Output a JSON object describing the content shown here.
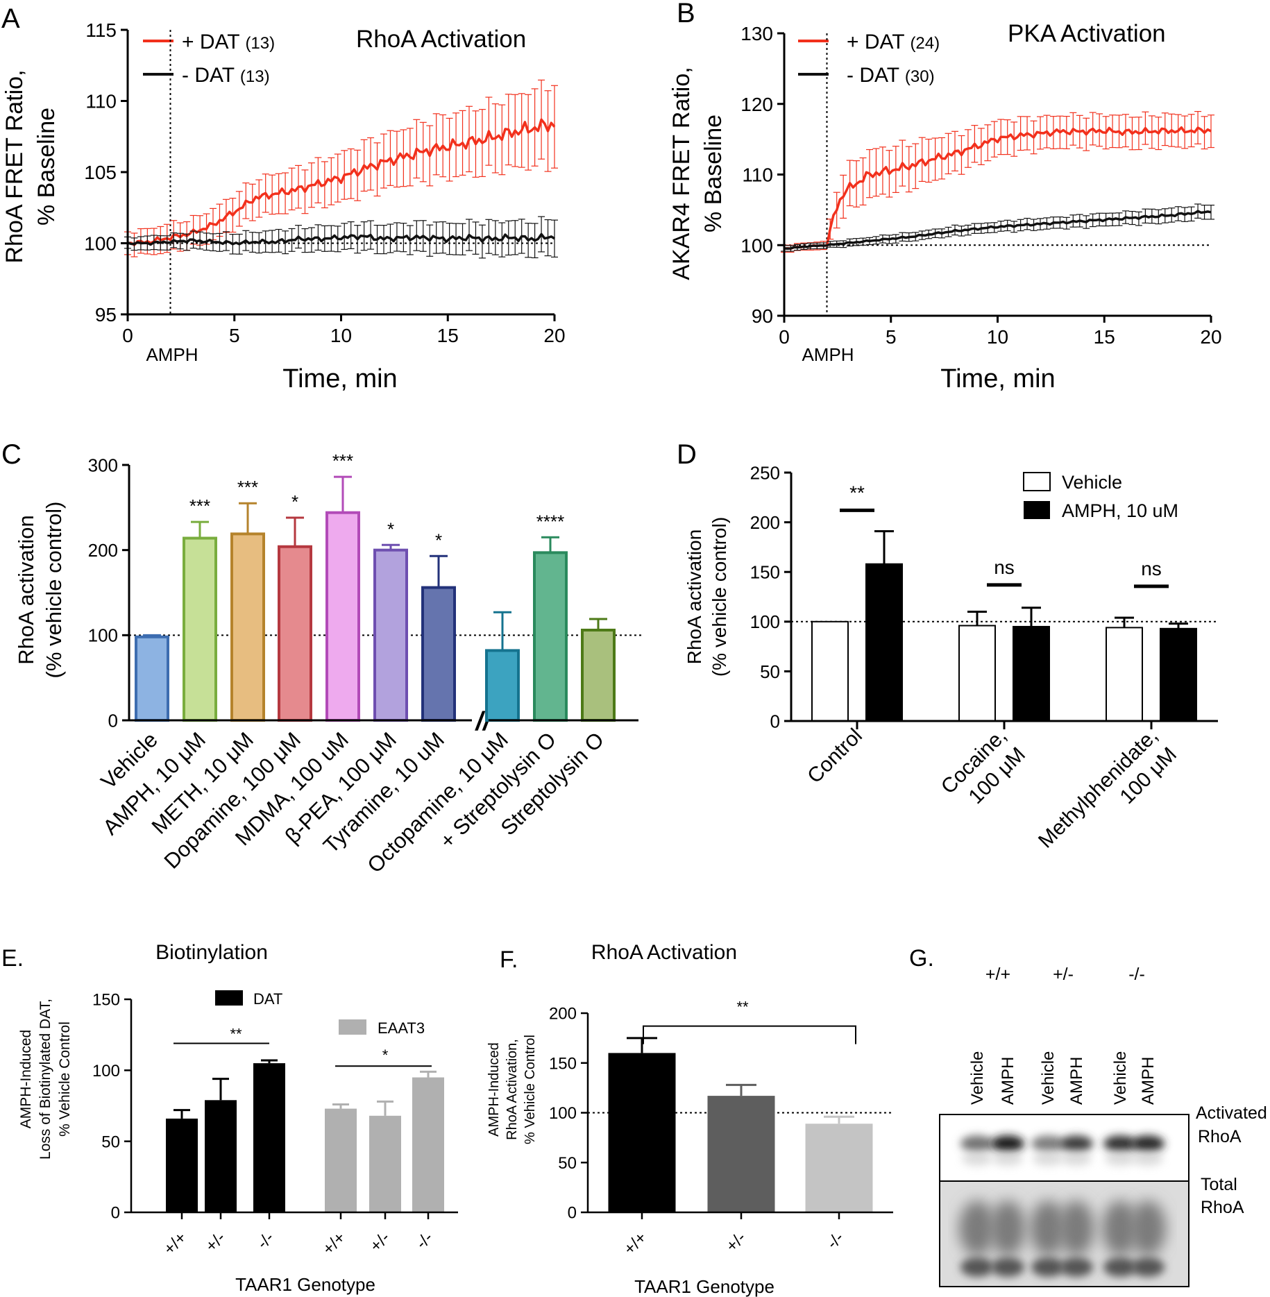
{
  "panelA": {
    "letter": "A",
    "title": "RhoA Activation",
    "ylabel_1": "RhoA FRET Ratio,",
    "ylabel_2": "% Baseline",
    "xlabel": "Time, min",
    "yticks": [
      95,
      100,
      105,
      110,
      115
    ],
    "xticks": [
      0,
      5,
      10,
      15,
      20
    ],
    "marker": "AMPH",
    "legend": [
      {
        "label": "+ DAT",
        "n": "(13)",
        "color": "#f2301c"
      },
      {
        "label": "- DAT",
        "n": "(13)",
        "color": "#111111"
      }
    ],
    "chart_data": {
      "type": "line",
      "xlim": [
        0,
        20
      ],
      "ylim": [
        95,
        115
      ],
      "event_x": 2,
      "baseline": 100,
      "series": [
        {
          "name": "+ DAT (13)",
          "color": "#f2301c",
          "x": [
            0,
            1,
            2,
            3,
            4,
            5,
            6,
            7,
            8,
            9,
            10,
            11,
            12,
            13,
            14,
            15,
            16,
            17,
            18,
            19,
            20
          ],
          "y": [
            100,
            100.1,
            100.4,
            100.7,
            101.3,
            102.2,
            103.2,
            103.5,
            103.8,
            104.2,
            104.6,
            105.2,
            105.7,
            106.1,
            106.5,
            106.8,
            107.1,
            107.4,
            107.8,
            108.1,
            108.4
          ],
          "err": [
            0.8,
            0.9,
            1.0,
            1.0,
            1.1,
            1.2,
            1.3,
            1.4,
            1.5,
            1.6,
            1.7,
            1.8,
            1.9,
            2.0,
            2.1,
            2.2,
            2.3,
            2.4,
            2.5,
            2.7,
            2.9
          ]
        },
        {
          "name": "- DAT (13)",
          "color": "#111111",
          "x": [
            0,
            1,
            2,
            3,
            4,
            5,
            6,
            7,
            8,
            9,
            10,
            11,
            12,
            13,
            14,
            15,
            16,
            17,
            18,
            19,
            20
          ],
          "y": [
            100,
            100,
            100.1,
            100.2,
            100.1,
            100,
            100.1,
            100.1,
            100.3,
            100.3,
            100.4,
            100.5,
            100.3,
            100.4,
            100.4,
            100.3,
            100.4,
            100.3,
            100.4,
            100.3,
            100.5
          ],
          "err": [
            0.4,
            0.5,
            0.5,
            0.6,
            0.6,
            0.7,
            0.7,
            0.8,
            0.8,
            0.9,
            0.9,
            1.0,
            1.0,
            1.0,
            1.1,
            1.1,
            1.1,
            1.2,
            1.2,
            1.2,
            1.3
          ]
        }
      ]
    }
  },
  "panelB": {
    "letter": "B",
    "title": "PKA Activation",
    "ylabel_1": "AKAR4 FRET Ratio,",
    "ylabel_2": "% Baseline",
    "xlabel": "Time, min",
    "yticks": [
      90,
      100,
      110,
      120,
      130
    ],
    "xticks": [
      0,
      5,
      10,
      15,
      20
    ],
    "marker": "AMPH",
    "legend": [
      {
        "label": "+ DAT",
        "n": "(24)",
        "color": "#f2301c"
      },
      {
        "label": "- DAT",
        "n": "(30)",
        "color": "#111111"
      }
    ],
    "chart_data": {
      "type": "line",
      "xlim": [
        0,
        20
      ],
      "ylim": [
        90,
        130
      ],
      "event_x": 2,
      "baseline": 100,
      "series": [
        {
          "name": "+ DAT (24)",
          "color": "#f2301c",
          "x": [
            0,
            1,
            2,
            2.3,
            2.7,
            3,
            4,
            5,
            6,
            7,
            8,
            9,
            10,
            11,
            12,
            13,
            14,
            15,
            16,
            17,
            18,
            19,
            20
          ],
          "y": [
            99.5,
            99.8,
            100,
            104,
            107,
            108,
            110,
            110.6,
            111.3,
            112.2,
            113,
            114,
            115.1,
            115.5,
            115.8,
            116.1,
            116.1,
            116.2,
            116,
            116.1,
            116.2,
            116.2,
            116.3
          ],
          "err": [
            0.5,
            0.5,
            0.6,
            2.2,
            3.0,
            3.2,
            3.4,
            3.3,
            3.2,
            3.0,
            2.8,
            2.6,
            2.5,
            2.4,
            2.3,
            2.3,
            2.3,
            2.3,
            2.3,
            2.3,
            2.3,
            2.3,
            2.3
          ]
        },
        {
          "name": "- DAT (30)",
          "color": "#111111",
          "x": [
            0,
            1,
            2,
            3,
            4,
            5,
            6,
            7,
            8,
            9,
            10,
            11,
            12,
            13,
            14,
            15,
            16,
            17,
            18,
            19,
            20
          ],
          "y": [
            99.5,
            99.8,
            100,
            100.3,
            100.6,
            100.9,
            101.2,
            101.6,
            102,
            102.3,
            102.6,
            102.8,
            103,
            103.2,
            103.4,
            103.6,
            103.8,
            104,
            104.2,
            104.5,
            104.8
          ],
          "err": [
            0.4,
            0.4,
            0.4,
            0.5,
            0.5,
            0.6,
            0.6,
            0.6,
            0.7,
            0.7,
            0.7,
            0.8,
            0.8,
            0.8,
            0.9,
            0.9,
            0.9,
            1.0,
            1.0,
            1.0,
            1.0
          ]
        }
      ]
    }
  },
  "panelC": {
    "letter": "C",
    "ylabel_1": "RhoA activation",
    "ylabel_2": "(% vehicle control)",
    "yticks": [
      0,
      100,
      200,
      300
    ],
    "break_mark": "//",
    "chart_data": {
      "type": "bar",
      "ylim": [
        0,
        300
      ],
      "baseline": 100,
      "categories": [
        "Vehicle",
        "AMPH, 10 μM",
        "METH, 10 μM",
        "Dopamine, 100 μM",
        "MDMA, 100 uM",
        "β-PEA, 100 μM",
        "Tyramine, 10 uM",
        "Octopamine, 10 μM",
        "+ Streptolysin O",
        "Streptolysin O"
      ],
      "values": [
        98,
        214,
        219,
        204,
        244,
        200,
        156,
        82,
        197,
        106
      ],
      "errors": [
        2,
        19,
        36,
        34,
        42,
        6,
        37,
        45,
        18,
        13
      ],
      "significance": [
        "",
        "***",
        "***",
        "*",
        "***",
        "*",
        "*",
        "",
        "****",
        ""
      ],
      "fills": [
        "#8db3e2",
        "#c6e097",
        "#e7bd80",
        "#e58a8e",
        "#eeaaee",
        "#b2a2dd",
        "#6574ae",
        "#3ca3c0",
        "#62b58f",
        "#a9c07d"
      ],
      "strokes": [
        "#3d6db0",
        "#79ad3e",
        "#b5832c",
        "#b5383f",
        "#b24bb8",
        "#6e4fb0",
        "#23327a",
        "#15738f",
        "#2a8a5d",
        "#4d7a17"
      ]
    }
  },
  "panelD": {
    "letter": "D",
    "ylabel_1": "RhoA activation",
    "ylabel_2": "(% vehicle control)",
    "yticks": [
      0,
      50,
      100,
      150,
      200,
      250
    ],
    "legend": [
      {
        "label": "Vehicle",
        "fill": "#ffffff"
      },
      {
        "label": "AMPH, 10 uM",
        "fill": "#000000"
      }
    ],
    "groups": [
      {
        "line1": "Control",
        "line2": ""
      },
      {
        "line1": "Cocaine,",
        "line2": "100 μM"
      },
      {
        "line1": "Methylphenidate,",
        "line2": "100 μM"
      }
    ],
    "chart_data": {
      "type": "bar",
      "ylim": [
        0,
        250
      ],
      "baseline": 100,
      "categories": [
        "Control",
        "Cocaine, 100 μM",
        "Methylphenidate, 100 μM"
      ],
      "series": [
        {
          "name": "Vehicle",
          "values": [
            100,
            96,
            94
          ],
          "errors": [
            0,
            14,
            10
          ]
        },
        {
          "name": "AMPH, 10 uM",
          "values": [
            158,
            95,
            93
          ],
          "errors": [
            33,
            19,
            5
          ]
        }
      ],
      "significance": [
        "**",
        "ns",
        "ns"
      ]
    }
  },
  "panelE": {
    "letter": "E.",
    "title": "Biotinylation",
    "ylabel_1": "AMPH-Induced",
    "ylabel_2": "Loss of Biotinylated DAT,",
    "ylabel_3": "% Vehicle Control",
    "xlabel": "TAAR1 Genotype",
    "yticks": [
      0,
      50,
      100,
      150
    ],
    "legend": [
      {
        "label": "DAT",
        "fill": "#000000"
      },
      {
        "label": "EAAT3",
        "fill": "#b0b0b0"
      }
    ],
    "chart_data": {
      "type": "bar",
      "ylim": [
        0,
        150
      ],
      "categories": [
        "+/+",
        "+/-",
        "-/-"
      ],
      "series": [
        {
          "name": "DAT",
          "values": [
            66,
            79,
            105
          ],
          "errors": [
            6,
            15,
            2
          ],
          "color": "#000000"
        },
        {
          "name": "EAAT3",
          "values": [
            73,
            68,
            95
          ],
          "errors": [
            3,
            10,
            4
          ],
          "color": "#b0b0b0"
        }
      ],
      "significance": [
        "**",
        "*"
      ]
    }
  },
  "panelF": {
    "letter": "F.",
    "title": "RhoA Activation",
    "ylabel_1": "AMPH-Induced",
    "ylabel_2": "RhoA Activation,",
    "ylabel_3": "% Vehicle Control",
    "xlabel": "TAAR1 Genotype",
    "yticks": [
      0,
      50,
      100,
      150,
      200
    ],
    "chart_data": {
      "type": "bar",
      "ylim": [
        0,
        200
      ],
      "baseline": 100,
      "categories": [
        "+/+",
        "+/-",
        "-/-"
      ],
      "values": [
        160,
        117,
        89
      ],
      "errors": [
        15,
        11,
        7
      ],
      "colors": [
        "#000000",
        "#5e5e5e",
        "#c4c4c4"
      ],
      "significance": [
        "**"
      ]
    }
  },
  "panelG": {
    "letter": "G.",
    "genotypes": [
      "+/+",
      "+/-",
      "-/-"
    ],
    "lanes": [
      "Vehicle",
      "AMPH",
      "Vehicle",
      "AMPH",
      "Vehicle",
      "AMPH"
    ],
    "blots": [
      {
        "label_1": "Activated",
        "label_2": "RhoA",
        "intensities": [
          0.55,
          0.95,
          0.5,
          0.8,
          0.85,
          0.9
        ]
      },
      {
        "label_1": "Total",
        "label_2": "RhoA",
        "intensities": [
          0.8,
          0.8,
          0.8,
          0.8,
          0.8,
          0.8
        ]
      }
    ]
  }
}
